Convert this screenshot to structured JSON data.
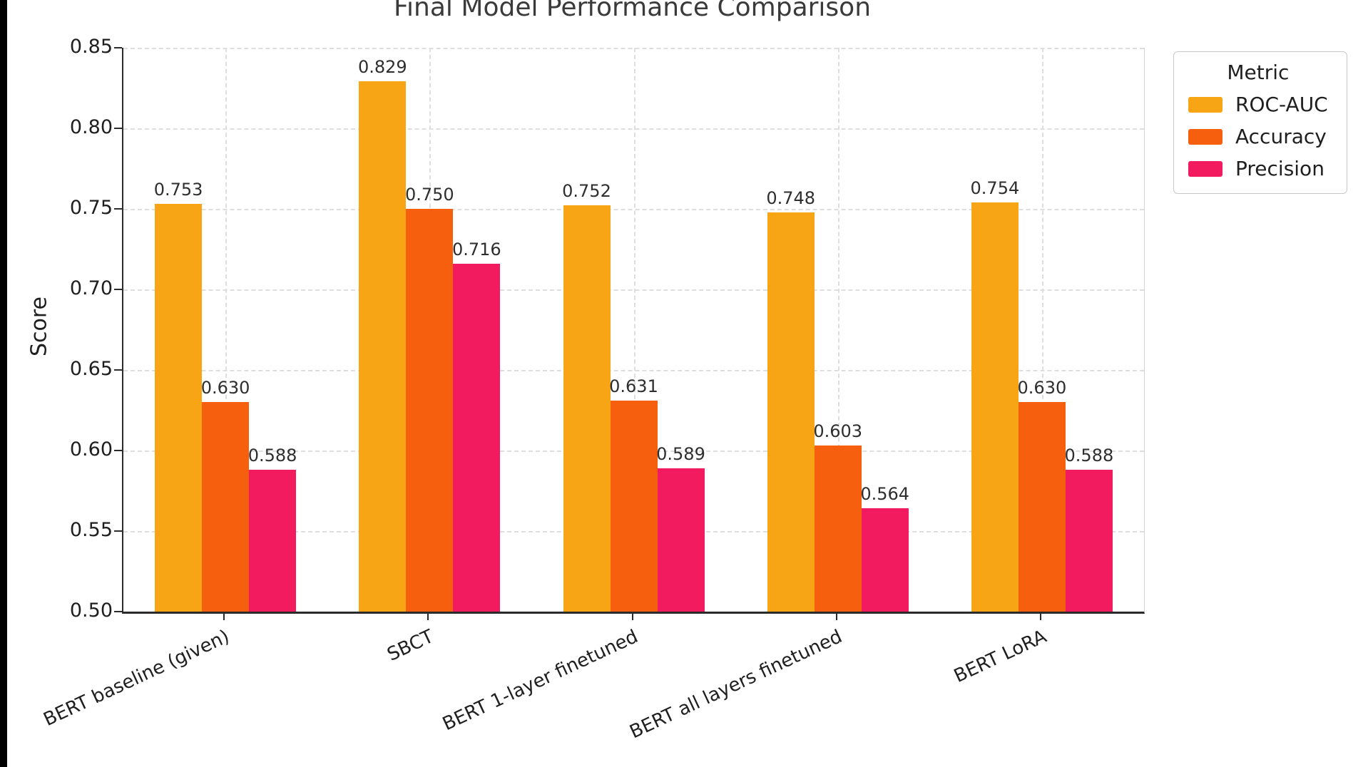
{
  "chart_data": {
    "type": "bar",
    "title": "Final Model Performance Comparison",
    "xlabel": "",
    "ylabel": "Score",
    "ylim": [
      0.5,
      0.85
    ],
    "yticks": [
      0.5,
      0.55,
      0.6,
      0.65,
      0.7,
      0.75,
      0.8,
      0.85
    ],
    "grid": true,
    "legend_title": "Metric",
    "legend_position": "upper right outside",
    "categories": [
      "BERT baseline (given)",
      "SBCT",
      "BERT 1-layer finetuned",
      "BERT all layers finetuned",
      "BERT LoRA"
    ],
    "series": [
      {
        "name": "ROC-AUC",
        "color": "#F7A514",
        "values": [
          0.753,
          0.829,
          0.752,
          0.748,
          0.754
        ]
      },
      {
        "name": "Accuracy",
        "color": "#F55F0E",
        "values": [
          0.63,
          0.75,
          0.631,
          0.603,
          0.63
        ]
      },
      {
        "name": "Precision",
        "color": "#F31B60",
        "values": [
          0.588,
          0.716,
          0.589,
          0.564,
          0.588
        ]
      }
    ]
  }
}
